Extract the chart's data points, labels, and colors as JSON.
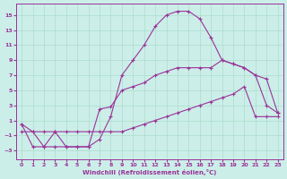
{
  "xlabel": "Windchill (Refroidissement éolien,°C)",
  "background_color": "#cceee8",
  "grid_color": "#aaddcc",
  "line_color": "#993399",
  "xlim": [
    -0.5,
    23.5
  ],
  "ylim": [
    -4.2,
    16.5
  ],
  "yticks": [
    -3,
    -1,
    1,
    3,
    5,
    7,
    9,
    11,
    13,
    15
  ],
  "xticks": [
    0,
    1,
    2,
    3,
    4,
    5,
    6,
    7,
    8,
    9,
    10,
    11,
    12,
    13,
    14,
    15,
    16,
    17,
    18,
    19,
    20,
    21,
    22,
    23
  ],
  "series1_x": [
    0,
    1,
    2,
    3,
    4,
    5,
    6,
    7,
    8,
    9,
    10,
    11,
    12,
    13,
    14,
    15,
    16,
    17,
    18,
    19,
    20,
    21,
    22,
    23
  ],
  "series1_y": [
    0.5,
    -2.5,
    -2.5,
    -2.5,
    -2.5,
    -2.5,
    -2.5,
    2.5,
    2.8,
    5.0,
    5.5,
    6.0,
    7.0,
    7.5,
    8.0,
    8.0,
    8.0,
    8.0,
    9.0,
    8.5,
    8.0,
    7.0,
    3.0,
    2.0
  ],
  "series2_x": [
    0,
    1,
    2,
    3,
    4,
    5,
    6,
    7,
    8,
    9,
    10,
    11,
    12,
    13,
    14,
    15,
    16,
    17,
    18,
    19,
    20,
    21,
    22,
    23
  ],
  "series2_y": [
    0.5,
    -0.5,
    -2.5,
    -0.5,
    -2.5,
    -2.5,
    -2.5,
    -1.5,
    1.5,
    7.0,
    9.0,
    11.0,
    13.5,
    15.0,
    15.5,
    15.5,
    14.5,
    12.0,
    9.0,
    8.5,
    8.0,
    7.0,
    6.5,
    2.0
  ],
  "series3_x": [
    0,
    1,
    2,
    3,
    4,
    5,
    6,
    7,
    8,
    9,
    10,
    11,
    12,
    13,
    14,
    15,
    16,
    17,
    18,
    19,
    20,
    21,
    22,
    23
  ],
  "series3_y": [
    -0.5,
    -0.5,
    -0.5,
    -0.5,
    -0.5,
    -0.5,
    -0.5,
    -0.5,
    -0.5,
    -0.5,
    0.0,
    0.5,
    1.0,
    1.5,
    2.0,
    2.5,
    3.0,
    3.5,
    4.0,
    4.5,
    5.5,
    1.5,
    1.5,
    1.5
  ]
}
